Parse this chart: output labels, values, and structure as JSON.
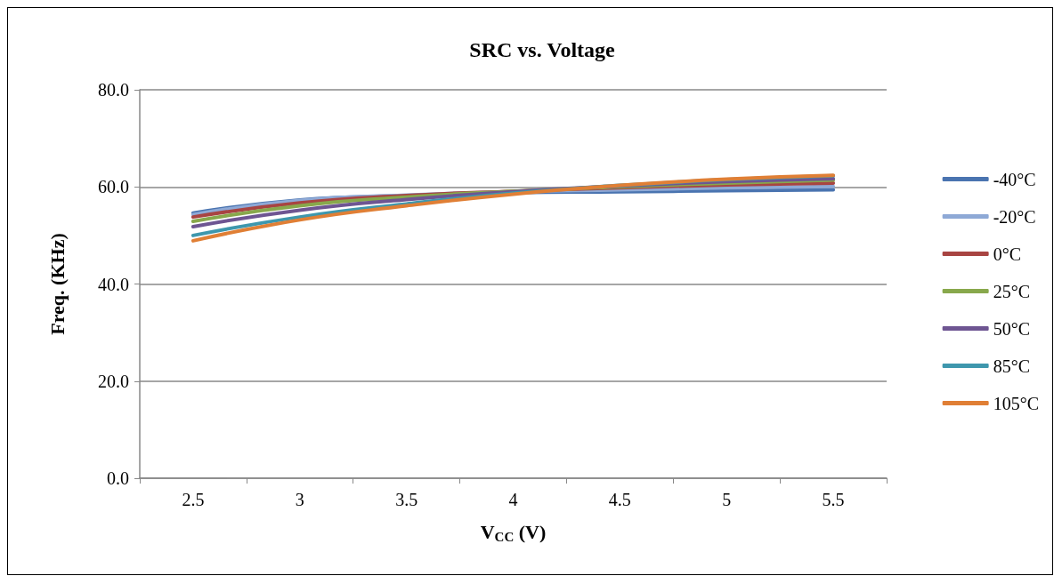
{
  "chart_data": {
    "type": "line",
    "title": "SRC vs. Voltage",
    "xlabel": "V$_{CC}$ (V)",
    "ylabel": "Freq. (KHz)",
    "categories": [
      "2.5",
      "3",
      "3.5",
      "4",
      "4.5",
      "5",
      "5.5"
    ],
    "ylim": [
      0,
      80
    ],
    "yticks": [
      {
        "value": 0,
        "label": "0.0"
      },
      {
        "value": 20,
        "label": "20.0"
      },
      {
        "value": 40,
        "label": "40.0"
      },
      {
        "value": 60,
        "label": "60.0"
      },
      {
        "value": 80,
        "label": "80.0"
      }
    ],
    "grid": "y",
    "legend": "right",
    "marker": "none",
    "line_style": "solid",
    "series": [
      {
        "name": "-40°C",
        "color": "#4a74b0",
        "values": [
          54.6,
          57.3,
          58.2,
          58.8,
          59.0,
          59.2,
          59.4
        ]
      },
      {
        "name": "-20°C",
        "color": "#8ea9d6",
        "values": [
          54.3,
          57.2,
          58.3,
          59.0,
          59.4,
          59.8,
          60.1
        ]
      },
      {
        "name": "0°C",
        "color": "#a84442",
        "values": [
          53.8,
          56.7,
          58.2,
          59.1,
          59.8,
          60.4,
          60.8
        ]
      },
      {
        "name": "25°C",
        "color": "#88a84c",
        "values": [
          52.9,
          56.1,
          57.9,
          59.1,
          60.0,
          60.8,
          61.4
        ]
      },
      {
        "name": "50°C",
        "color": "#6e5592",
        "values": [
          51.8,
          55.2,
          57.4,
          59.0,
          60.2,
          61.1,
          61.7
        ]
      },
      {
        "name": "85°C",
        "color": "#3e97ad",
        "values": [
          50.0,
          53.8,
          56.5,
          58.7,
          60.3,
          61.5,
          62.3
        ]
      },
      {
        "name": "105°C",
        "color": "#e07f35",
        "values": [
          48.9,
          53.2,
          56.1,
          58.5,
          60.3,
          61.6,
          62.4
        ]
      }
    ]
  }
}
